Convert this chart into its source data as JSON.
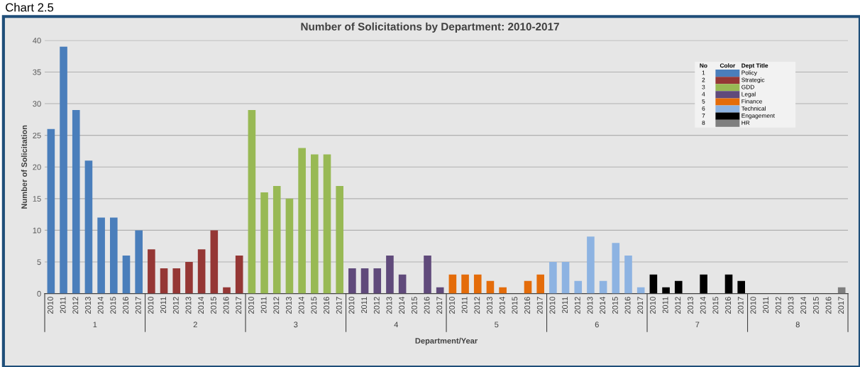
{
  "chart_data": {
    "type": "bar",
    "title": "Number of Solicitations by Department: 2010-2017",
    "xlabel": "Department/Year",
    "ylabel": "Number of Solicitation",
    "legend_title": "Dept Title",
    "annotations": [
      "Chart 2.5",
      "No",
      "Color",
      "1",
      "2",
      "3",
      "4",
      "5",
      "6",
      "7",
      "8"
    ],
    "categories": [
      "2010",
      "2011",
      "2012",
      "2013",
      "2014",
      "2015",
      "2016",
      "2017",
      "2010",
      "2011",
      "2012",
      "2013",
      "2014",
      "2015",
      "2016",
      "2017",
      "2010",
      "2011",
      "2012",
      "2013",
      "2014",
      "2015",
      "2016",
      "2017",
      "2010",
      "2011",
      "2012",
      "2013",
      "2014",
      "2015",
      "2016",
      "2017",
      "2010",
      "2011",
      "2012",
      "2013",
      "2014",
      "2015",
      "2016",
      "2017",
      "2010",
      "2011",
      "2012",
      "2013",
      "2014",
      "2015",
      "2016",
      "2017",
      "2010",
      "2011",
      "2012",
      "2013",
      "2014",
      "2015",
      "2016",
      "2017",
      "2010",
      "2011",
      "2012",
      "2013",
      "2014",
      "2015",
      "2016",
      "2017"
    ],
    "series": [
      {
        "name": "Policy",
        "color": "#4a7ebb",
        "values": [
          26,
          39,
          29,
          21,
          12,
          12,
          6,
          10,
          null,
          null,
          null,
          null,
          null,
          null,
          null,
          null,
          null,
          null,
          null,
          null,
          null,
          null,
          null,
          null,
          null,
          null,
          null,
          null,
          null,
          null,
          null,
          null,
          null,
          null,
          null,
          null,
          null,
          null,
          null,
          null,
          null,
          null,
          null,
          null,
          null,
          null,
          null,
          null,
          null,
          null,
          null,
          null,
          null,
          null,
          null,
          null,
          null,
          null,
          null,
          null,
          null,
          null,
          null,
          null
        ]
      },
      {
        "name": "Strategic",
        "color": "#953735",
        "values": [
          null,
          null,
          null,
          null,
          null,
          null,
          null,
          null,
          7,
          4,
          4,
          5,
          7,
          10,
          1,
          6,
          null,
          null,
          null,
          null,
          null,
          null,
          null,
          null,
          null,
          null,
          null,
          null,
          null,
          null,
          null,
          null,
          null,
          null,
          null,
          null,
          null,
          null,
          null,
          null,
          null,
          null,
          null,
          null,
          null,
          null,
          null,
          null,
          null,
          null,
          null,
          null,
          null,
          null,
          null,
          null,
          null,
          null,
          null,
          null,
          null,
          null,
          null,
          null
        ]
      },
      {
        "name": "GDD",
        "color": "#98b954",
        "values": [
          null,
          null,
          null,
          null,
          null,
          null,
          null,
          null,
          null,
          null,
          null,
          null,
          null,
          null,
          null,
          null,
          29,
          16,
          17,
          15,
          23,
          22,
          22,
          17,
          null,
          null,
          null,
          null,
          null,
          null,
          null,
          null,
          null,
          null,
          null,
          null,
          null,
          null,
          null,
          null,
          null,
          null,
          null,
          null,
          null,
          null,
          null,
          null,
          null,
          null,
          null,
          null,
          null,
          null,
          null,
          null,
          null,
          null,
          null,
          null,
          null,
          null,
          null,
          null
        ]
      },
      {
        "name": "Legal",
        "color": "#604a7b",
        "values": [
          null,
          null,
          null,
          null,
          null,
          null,
          null,
          null,
          null,
          null,
          null,
          null,
          null,
          null,
          null,
          null,
          null,
          null,
          null,
          null,
          null,
          null,
          null,
          null,
          4,
          4,
          4,
          6,
          3,
          0,
          6,
          1,
          null,
          null,
          null,
          null,
          null,
          null,
          null,
          null,
          null,
          null,
          null,
          null,
          null,
          null,
          null,
          null,
          null,
          null,
          null,
          null,
          null,
          null,
          null,
          null,
          null,
          null,
          null,
          null,
          null,
          null,
          null,
          null
        ]
      },
      {
        "name": "Finance",
        "color": "#e46c0a",
        "values": [
          null,
          null,
          null,
          null,
          null,
          null,
          null,
          null,
          null,
          null,
          null,
          null,
          null,
          null,
          null,
          null,
          null,
          null,
          null,
          null,
          null,
          null,
          null,
          null,
          null,
          null,
          null,
          null,
          null,
          null,
          null,
          null,
          3,
          3,
          3,
          2,
          1,
          0,
          2,
          3,
          null,
          null,
          null,
          null,
          null,
          null,
          null,
          null,
          null,
          null,
          null,
          null,
          null,
          null,
          null,
          null,
          null,
          null,
          null,
          null,
          null,
          null,
          null,
          null
        ]
      },
      {
        "name": "Technical",
        "color": "#8db3e2",
        "values": [
          null,
          null,
          null,
          null,
          null,
          null,
          null,
          null,
          null,
          null,
          null,
          null,
          null,
          null,
          null,
          null,
          null,
          null,
          null,
          null,
          null,
          null,
          null,
          null,
          null,
          null,
          null,
          null,
          null,
          null,
          null,
          null,
          null,
          null,
          null,
          null,
          null,
          null,
          null,
          null,
          5,
          5,
          2,
          9,
          2,
          8,
          6,
          1,
          null,
          null,
          null,
          null,
          null,
          null,
          null,
          null,
          null,
          null,
          null,
          null,
          null,
          null,
          null,
          null
        ]
      },
      {
        "name": "Engagement",
        "color": "#000000",
        "values": [
          null,
          null,
          null,
          null,
          null,
          null,
          null,
          null,
          null,
          null,
          null,
          null,
          null,
          null,
          null,
          null,
          null,
          null,
          null,
          null,
          null,
          null,
          null,
          null,
          null,
          null,
          null,
          null,
          null,
          null,
          null,
          null,
          null,
          null,
          null,
          null,
          null,
          null,
          null,
          null,
          null,
          null,
          null,
          null,
          null,
          null,
          null,
          null,
          3,
          1,
          2,
          0,
          3,
          0,
          3,
          2,
          null,
          null,
          null,
          null,
          null,
          null,
          null,
          null
        ]
      },
      {
        "name": "HR",
        "color": "#7f7f7f",
        "values": [
          null,
          null,
          null,
          null,
          null,
          null,
          null,
          null,
          null,
          null,
          null,
          null,
          null,
          null,
          null,
          null,
          null,
          null,
          null,
          null,
          null,
          null,
          null,
          null,
          null,
          null,
          null,
          null,
          null,
          null,
          null,
          null,
          null,
          null,
          null,
          null,
          null,
          null,
          null,
          null,
          null,
          null,
          null,
          null,
          null,
          null,
          null,
          null,
          null,
          null,
          null,
          null,
          null,
          null,
          null,
          null,
          0,
          0,
          0,
          0,
          0,
          0,
          0,
          1
        ]
      }
    ],
    "ylim": [
      0,
      40
    ],
    "yticks": [
      0,
      5,
      10,
      15,
      20,
      25,
      30,
      35,
      40
    ],
    "grid": "y",
    "legend": "top right"
  }
}
